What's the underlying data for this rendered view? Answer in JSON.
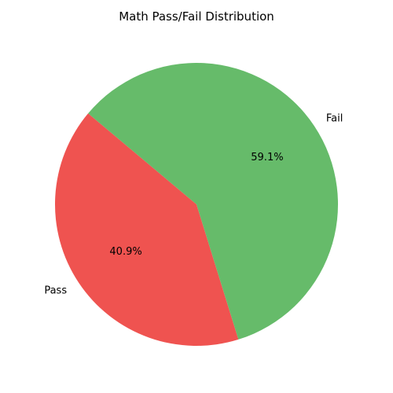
{
  "chart_data": {
    "type": "pie",
    "title": "Math Pass/Fail Distribution",
    "slices": [
      {
        "label": "Pass",
        "value": 40.9,
        "pct_label": "40.9%",
        "color": "#ef5350"
      },
      {
        "label": "Fail",
        "value": 59.1,
        "pct_label": "59.1%",
        "color": "#66bb6a"
      }
    ],
    "start_angle_deg": 140,
    "direction": "counterclockwise"
  }
}
